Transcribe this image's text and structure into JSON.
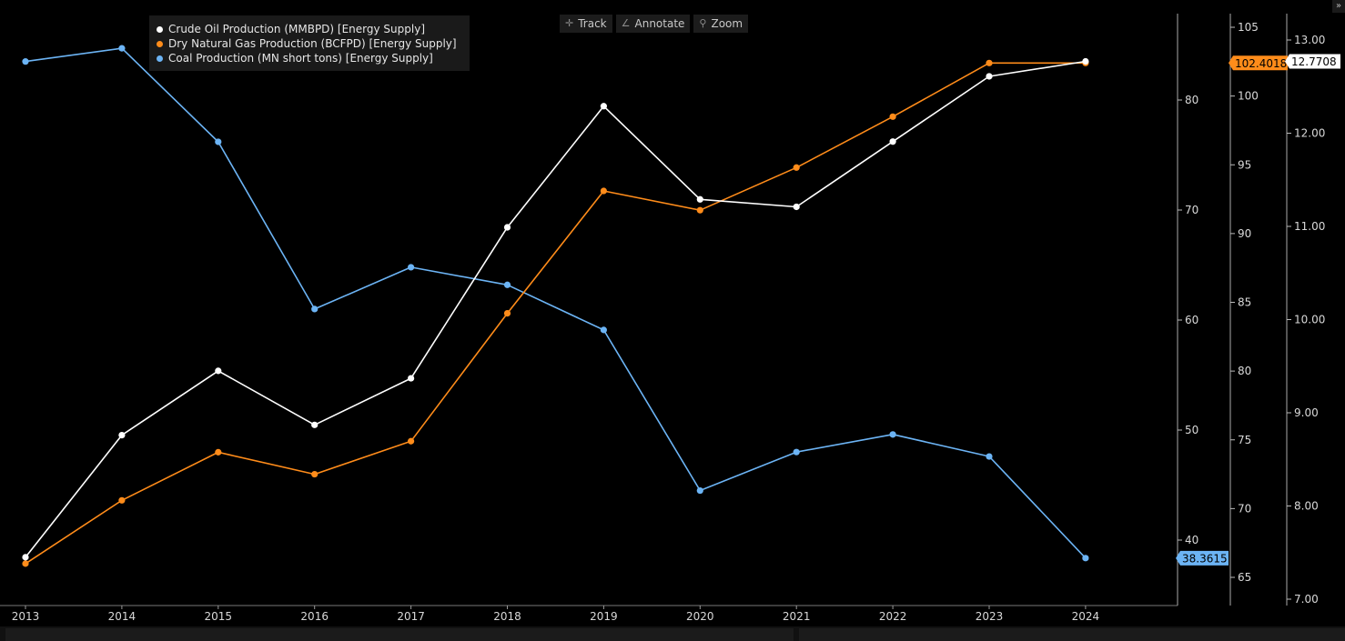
{
  "legend": [
    {
      "label": "Crude Oil Production (MMBPD) [Energy Supply]",
      "color": "#ffffff"
    },
    {
      "label": "Dry Natural Gas Production (BCFPD) [Energy Supply]",
      "color": "#ff8c1a"
    },
    {
      "label": "Coal Production (MN short tons) [Energy Supply]",
      "color": "#6cb4f5"
    }
  ],
  "toolbar": {
    "track_label": "Track",
    "annotate_label": "Annotate",
    "zoom_label": "Zoom",
    "track_icon": "crosshair-icon",
    "annotate_icon": "pencil-icon",
    "zoom_icon": "magnifier-icon"
  },
  "corner_label": "»",
  "chart_data": {
    "type": "line",
    "categories": [
      "2013",
      "2014",
      "2015",
      "2016",
      "2017",
      "2018",
      "2019",
      "2020",
      "2021",
      "2022",
      "2023",
      "2024"
    ],
    "series": [
      {
        "name": "Crude Oil Production (MMBPD) [Energy Supply]",
        "color": "#ffffff",
        "axis": "right3",
        "values": [
          7.45,
          8.76,
          9.45,
          8.87,
          9.37,
          10.99,
          12.29,
          11.29,
          11.21,
          11.91,
          12.61,
          12.7708
        ],
        "last_label": "12.7708"
      },
      {
        "name": "Dry Natural Gas Production (BCFPD) [Energy Supply]",
        "color": "#ff8c1a",
        "axis": "right2",
        "values": [
          66.0,
          70.6,
          74.1,
          72.5,
          74.9,
          84.2,
          93.1,
          91.7,
          94.8,
          98.5,
          102.4,
          102.4018
        ],
        "last_label": "102.4018"
      },
      {
        "name": "Coal Production (MN short tons) [Energy Supply]",
        "color": "#6cb4f5",
        "axis": "right1",
        "values": [
          83.5,
          84.7,
          76.2,
          61.0,
          64.8,
          63.2,
          59.1,
          44.5,
          48.0,
          49.6,
          47.6,
          38.3615
        ],
        "last_label": "38.3615"
      }
    ],
    "axes": {
      "right1": {
        "ticks": [
          "40",
          "50",
          "60",
          "70",
          "80"
        ],
        "range": [
          33,
          88
        ]
      },
      "right2": {
        "ticks": [
          "65",
          "70",
          "75",
          "80",
          "85",
          "90",
          "95",
          "100",
          "105"
        ],
        "range": [
          63.3,
          106.5
        ]
      },
      "right3": {
        "ticks": [
          "7.00",
          "8.00",
          "9.00",
          "10.00",
          "11.00",
          "12.00",
          "13.00"
        ],
        "range": [
          7.0,
          13.15
        ]
      }
    },
    "grid": false,
    "legend_position": "top-left"
  }
}
